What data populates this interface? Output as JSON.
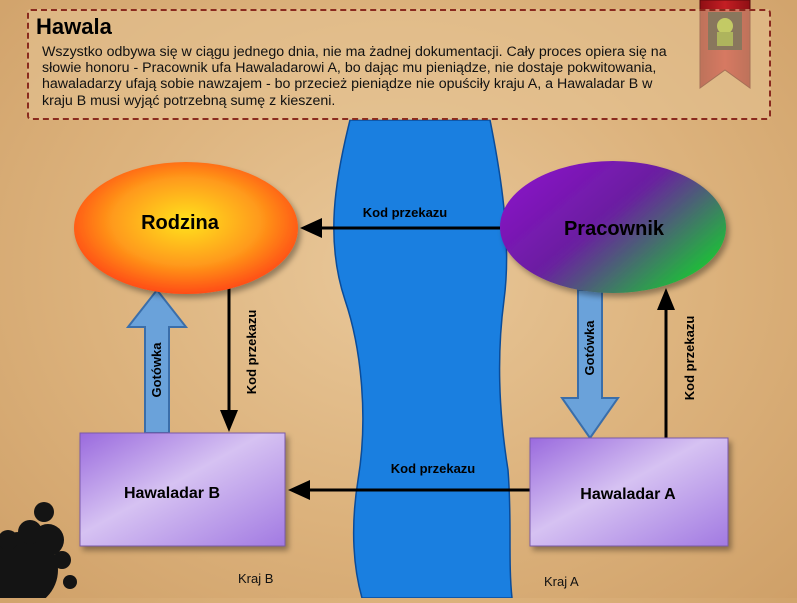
{
  "header": {
    "title": "Hawala",
    "description": "Wszystko odbywa się w ciągu jednego dnia, nie ma żadnej dokumentacji. Cały proces opiera się na słowie honoru - Pracownik ufa Hawaladarowi A, bo dając mu pieniądze, nie dostaje pokwitowania, hawaladarzy ufają sobie nawzajem - bo przecież pieniądze nie opuściły kraju A, a Hawaladar B w kraju B musi wyjąć potrzebną sumę z kieszeni."
  },
  "nodes": {
    "rodzina": "Rodzina",
    "pracownik": "Pracownik",
    "hawaladar_b": "Hawaladar B",
    "hawaladar_a": "Hawaladar A"
  },
  "edges": {
    "pracownik_to_rodzina": "Kod przekazu",
    "hawaladar_a_to_b": "Kod przekazu",
    "rodzina_to_hawaladar_b": "Kod przekazu",
    "hawaladar_a_to_pracownik": "Kod przekazu",
    "hawaladar_b_to_rodzina_cash": "Gotówka",
    "pracownik_to_hawaladar_a_cash": "Gotówka"
  },
  "regions": {
    "kraj_b": "Kraj B",
    "kraj_a": "Kraj A"
  },
  "colors": {
    "river": "#1a7fe0",
    "header_border": "#8a2a1e",
    "box_fill": "#b48ae6",
    "cash_arrow": "#6aa2da"
  }
}
